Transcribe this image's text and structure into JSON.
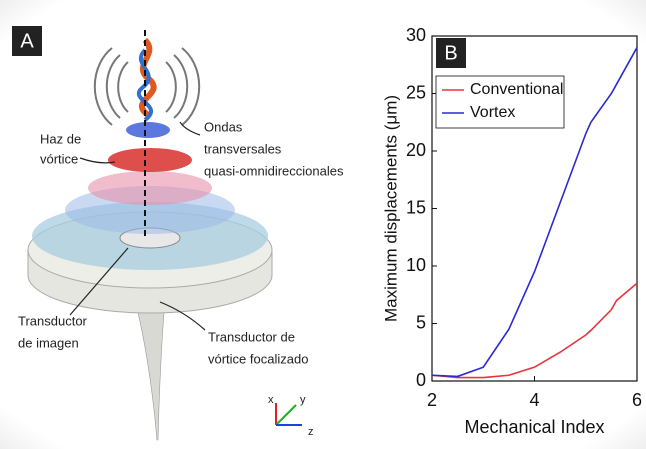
{
  "panel_a": {
    "label": "A",
    "beam_label": [
      "Haz de",
      "vórtice"
    ],
    "waves_label": [
      "Ondas",
      "transversales",
      "quasi-omnidireccionales"
    ],
    "imaging_label": [
      "Transductor",
      "de imagen"
    ],
    "vortex_transducer_label": [
      "Transductor de",
      "vórtice focalizado"
    ],
    "axes": [
      "x",
      "y",
      "z"
    ]
  },
  "chart_data": {
    "type": "line",
    "panel_label": "B",
    "x_label": "Mechanical Index",
    "y_label": "Maximum displacements (μm)",
    "x": [
      2,
      2.5,
      3,
      3.5,
      4,
      4.5,
      5,
      5.1,
      5.5,
      5.6,
      6
    ],
    "series": [
      {
        "name": "Conventional",
        "color": "#e8323c",
        "values": [
          0.5,
          0.3,
          0.3,
          0.5,
          1.2,
          2.5,
          4,
          4.4,
          6.2,
          7,
          8.5
        ]
      },
      {
        "name": "Vortex",
        "color": "#2a2ad0",
        "values": [
          0.5,
          0.4,
          1.2,
          4.5,
          9.5,
          15.5,
          21.5,
          22.5,
          25,
          25.8,
          29
        ]
      }
    ],
    "xlim": [
      2,
      6
    ],
    "xticks": [
      2,
      4,
      6
    ],
    "ylim": [
      0,
      30
    ],
    "yticks": [
      0,
      5,
      10,
      15,
      20,
      25,
      30
    ],
    "legend": "upper left"
  }
}
